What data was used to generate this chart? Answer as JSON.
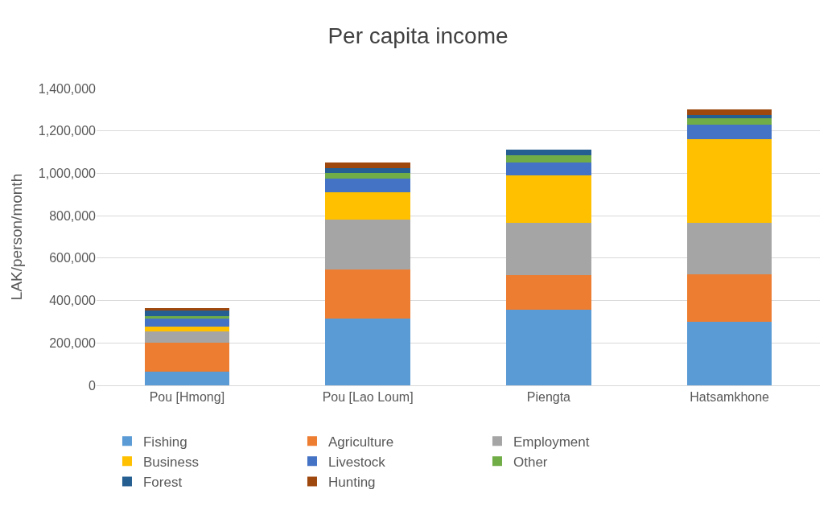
{
  "chart_data": {
    "type": "bar",
    "title": "Per capita income",
    "ylabel": "LAK/person/month",
    "categories": [
      "Pou [Hmong]",
      "Pou [Lao Loum]",
      "Piengta",
      "Hatsamkhone"
    ],
    "stacked": true,
    "ylim": [
      0,
      1400000
    ],
    "yticks": [
      {
        "value": 0,
        "label": "0"
      },
      {
        "value": 200000,
        "label": "200,000"
      },
      {
        "value": 400000,
        "label": "400,000"
      },
      {
        "value": 600000,
        "label": "600,000"
      },
      {
        "value": 800000,
        "label": "800,000"
      },
      {
        "value": 1000000,
        "label": "1,000,000"
      },
      {
        "value": 1200000,
        "label": "1,200,000"
      },
      {
        "value": 1400000,
        "label": "1,400,000"
      }
    ],
    "grid": "y",
    "legend": "bottom",
    "series": [
      {
        "name": "Fishing",
        "color": "#5b9bd5",
        "values": [
          65000,
          315000,
          355000,
          300000
        ]
      },
      {
        "name": "Agriculture",
        "color": "#ed7d31",
        "values": [
          137000,
          230000,
          165000,
          225000
        ]
      },
      {
        "name": "Employment",
        "color": "#a5a5a5",
        "values": [
          54000,
          235000,
          245000,
          240000
        ]
      },
      {
        "name": "Business",
        "color": "#ffc000",
        "values": [
          20000,
          130000,
          225000,
          395000
        ]
      },
      {
        "name": "Livestock",
        "color": "#4472c4",
        "values": [
          40000,
          65000,
          60000,
          70000
        ]
      },
      {
        "name": "Other",
        "color": "#70ad47",
        "values": [
          12000,
          25000,
          35000,
          30000
        ]
      },
      {
        "name": "Forest",
        "color": "#255e91",
        "values": [
          25000,
          25000,
          25000,
          15000
        ]
      },
      {
        "name": "Hunting",
        "color": "#9e480e",
        "values": [
          10000,
          25000,
          0,
          25000
        ]
      }
    ]
  }
}
